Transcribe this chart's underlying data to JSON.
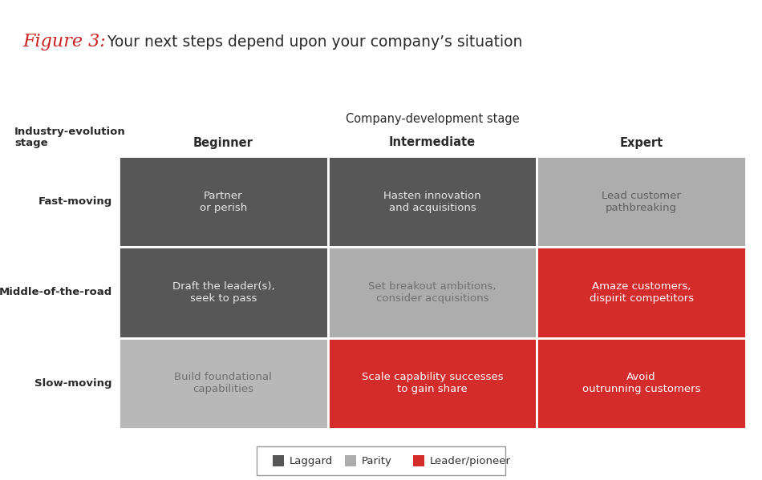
{
  "title_figure": "Figure 3:",
  "title_rest": " Your next steps depend upon your company’s situation",
  "col_header_center": "Company-development stage",
  "col_headers": [
    "Beginner",
    "Intermediate",
    "Expert"
  ],
  "row_label_header1": "Industry-evolution",
  "row_label_header2": "stage",
  "row_labels": [
    "Fast-moving",
    "Middle-of-the-road",
    "Slow-moving"
  ],
  "cells": [
    [
      "Partner\nor perish",
      "Hasten innovation\nand acquisitions",
      "Lead customer\npathbreaking"
    ],
    [
      "Draft the leader(s),\nseek to pass",
      "Set breakout ambitions,\nconsider acquisitions",
      "Amaze customers,\ndispirit competitors"
    ],
    [
      "Build foundational\ncapabilities",
      "Scale capability successes\nto gain share",
      "Avoid\noutrunning customers"
    ]
  ],
  "cell_colors": [
    [
      "#575757",
      "#575757",
      "#adadad"
    ],
    [
      "#575757",
      "#adadad",
      "#d42b2b"
    ],
    [
      "#b8b8b8",
      "#d42b2b",
      "#d42b2b"
    ]
  ],
  "text_colors": [
    [
      "#e8e8e8",
      "#e8e8e8",
      "#606060"
    ],
    [
      "#e8e8e8",
      "#707070",
      "#ffffff"
    ],
    [
      "#707070",
      "#ffffff",
      "#ffffff"
    ]
  ],
  "legend_items": [
    {
      "label": "Laggard",
      "color": "#575757"
    },
    {
      "label": "Parity",
      "color": "#adadad"
    },
    {
      "label": "Leader/pioneer",
      "color": "#d42b2b"
    }
  ],
  "bg_color": "#ffffff",
  "title_red": "#cc2222",
  "title_dark": "#2a2a2a",
  "header_color": "#2a2a2a"
}
